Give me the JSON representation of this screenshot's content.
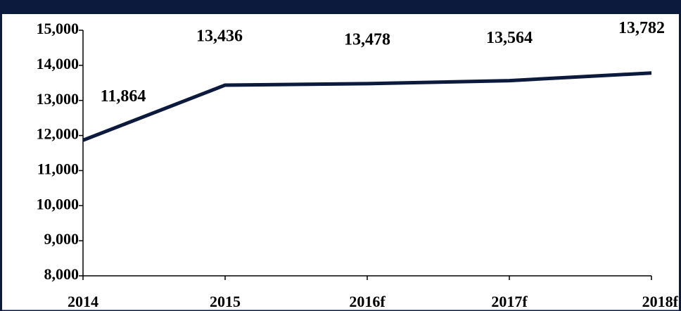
{
  "chart_data": {
    "type": "line",
    "categories": [
      "2014",
      "2015",
      "2016f",
      "2017f",
      "2018f"
    ],
    "series": [
      {
        "color": "#0b1a3d",
        "values": [
          11864,
          13436,
          13478,
          13564,
          13782
        ],
        "value_labels": [
          "11,864",
          "13,436",
          "13,478",
          "13,564",
          "13,782"
        ]
      }
    ],
    "ylim": [
      8000,
      15000
    ],
    "yticks": [
      {
        "value": 8000,
        "label": "8,000"
      },
      {
        "value": 9000,
        "label": "9,000"
      },
      {
        "value": 10000,
        "label": "10,000"
      },
      {
        "value": 11000,
        "label": "11,000"
      },
      {
        "value": 12000,
        "label": "12,000"
      },
      {
        "value": 13000,
        "label": "13,000"
      },
      {
        "value": 14000,
        "label": "14,000"
      },
      {
        "value": 15000,
        "label": "15,000"
      }
    ],
    "grid": false
  }
}
